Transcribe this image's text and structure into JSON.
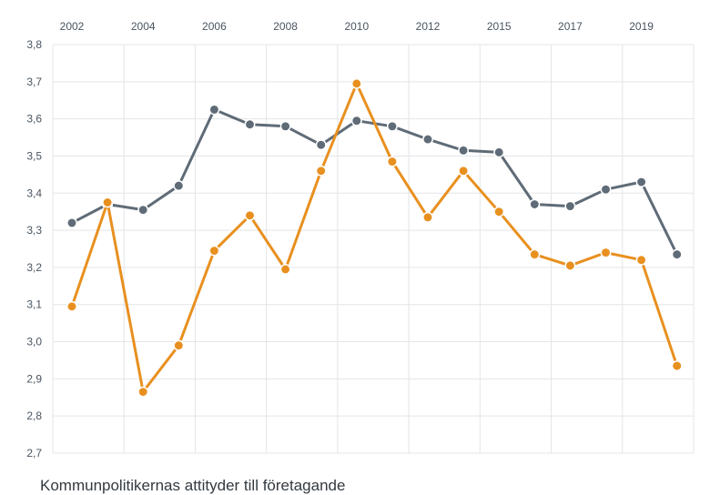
{
  "chart_data": {
    "type": "line",
    "x": [
      2002,
      2003,
      2004,
      2005,
      2006,
      2007,
      2008,
      2009,
      2010,
      2011,
      2012,
      2013,
      2015,
      2016,
      2017,
      2018,
      2019,
      2020
    ],
    "x_tick_labels": [
      "2002",
      "2004",
      "2006",
      "2008",
      "2010",
      "2012",
      "2015",
      "2017",
      "2019"
    ],
    "x_axis_position": "top",
    "y_tick_labels": [
      "2,7",
      "2,8",
      "2,9",
      "3,0",
      "3,1",
      "3,2",
      "3,3",
      "3,4",
      "3,5",
      "3,6",
      "3,7",
      "3,8"
    ],
    "ylim": [
      2.7,
      3.8
    ],
    "grid": true,
    "series": [
      {
        "color": "#5f6b77",
        "values": [
          3.32,
          3.37,
          3.355,
          3.42,
          3.625,
          3.585,
          3.58,
          3.53,
          3.595,
          3.58,
          3.545,
          3.515,
          3.51,
          3.37,
          3.365,
          3.41,
          3.43,
          3.235
        ]
      },
      {
        "color": "#e8901f",
        "values": [
          3.095,
          3.375,
          2.865,
          2.99,
          3.245,
          3.34,
          3.195,
          3.46,
          3.695,
          3.485,
          3.335,
          3.46,
          3.35,
          3.235,
          3.205,
          3.24,
          3.22,
          2.935
        ]
      }
    ],
    "caption": "Kommunpolitikernas attityder till företagande"
  }
}
